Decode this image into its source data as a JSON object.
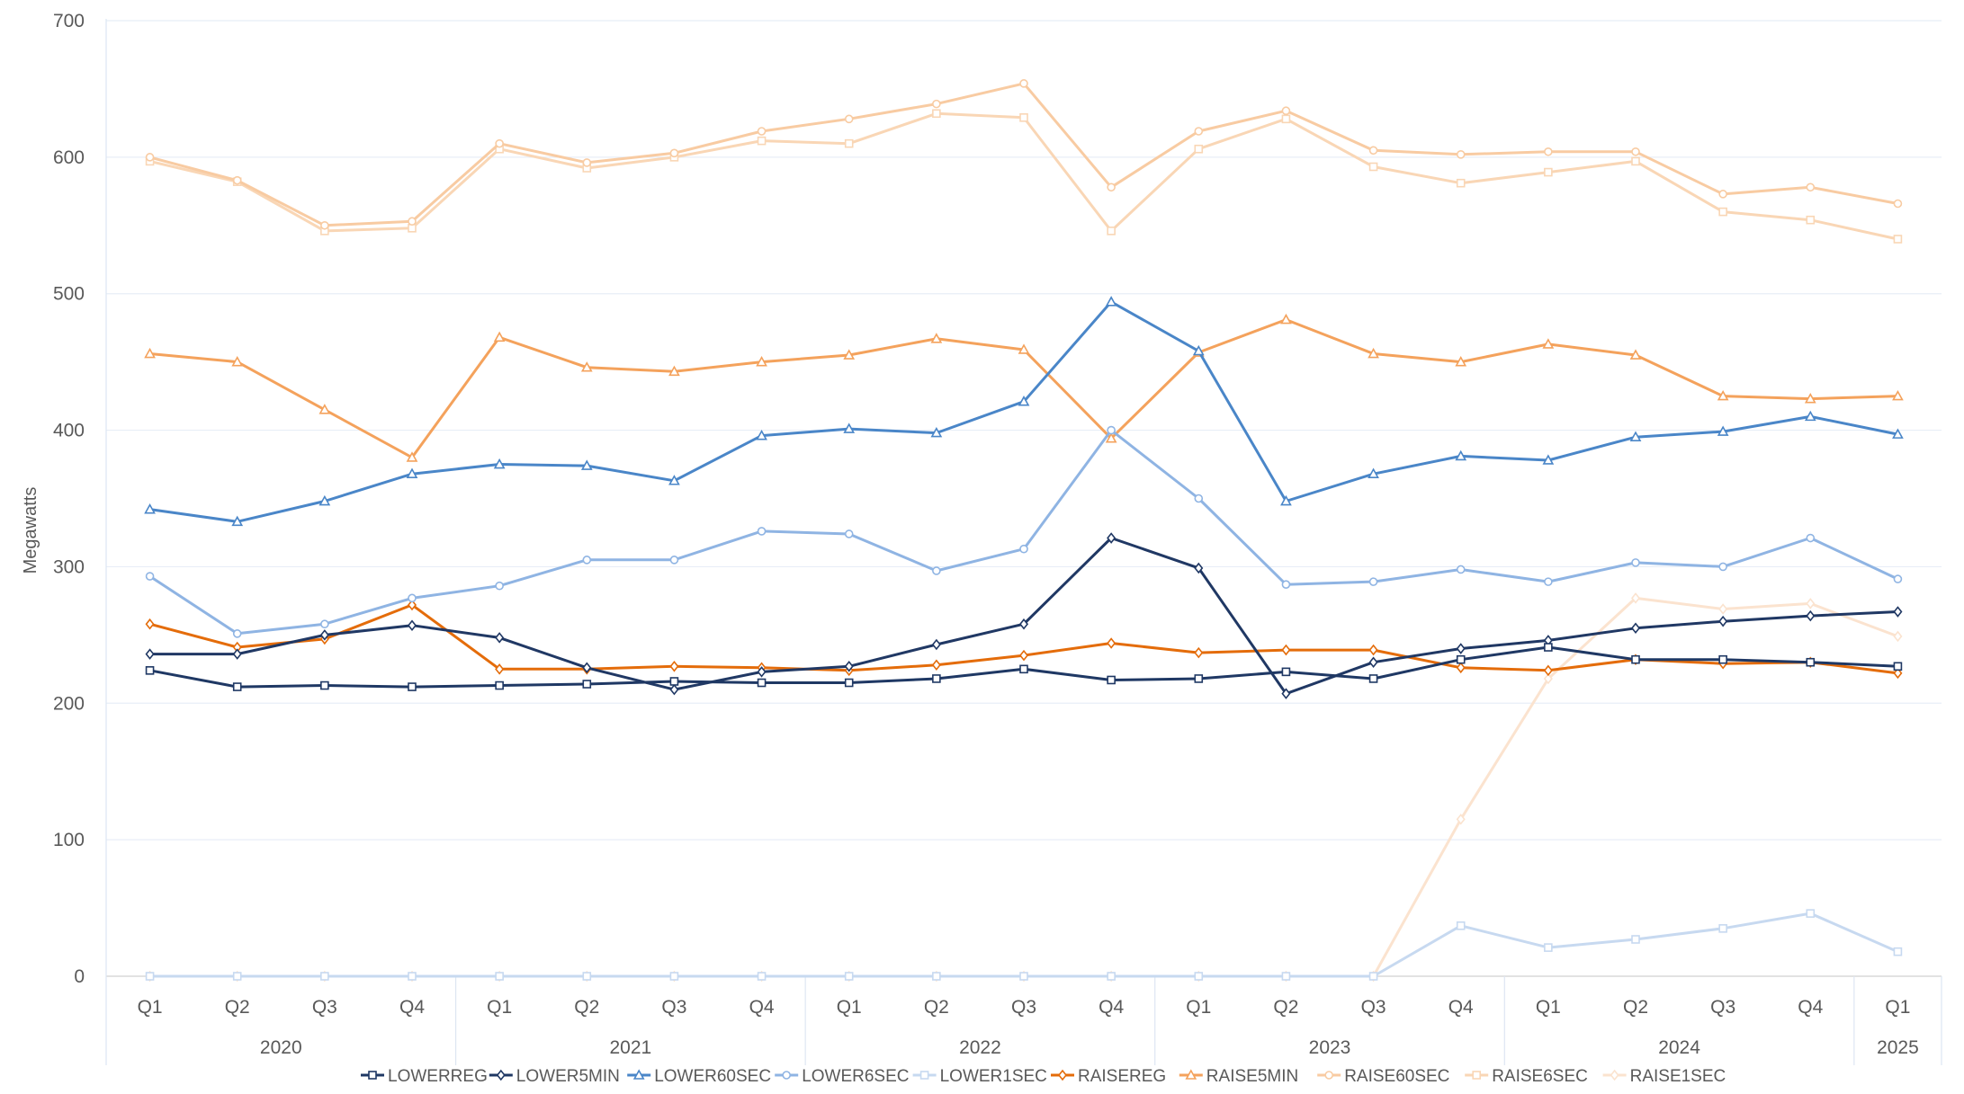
{
  "chart_data": {
    "type": "line",
    "title": "",
    "xlabel": "",
    "ylabel": "Megawatts",
    "ylim": [
      0,
      700
    ],
    "y_ticks": [
      "0",
      "100",
      "200",
      "300",
      "400",
      "500",
      "600",
      "700"
    ],
    "grid": true,
    "legend_position": "bottom",
    "categories": [
      "Q1",
      "Q2",
      "Q3",
      "Q4",
      "Q1",
      "Q2",
      "Q3",
      "Q4",
      "Q1",
      "Q2",
      "Q3",
      "Q4",
      "Q1",
      "Q2",
      "Q3",
      "Q4",
      "Q1",
      "Q2",
      "Q3",
      "Q4",
      "Q1"
    ],
    "years": [
      {
        "label": "2020",
        "quarters": 4
      },
      {
        "label": "2021",
        "quarters": 4
      },
      {
        "label": "2022",
        "quarters": 4
      },
      {
        "label": "2023",
        "quarters": 4
      },
      {
        "label": "2024",
        "quarters": 4
      },
      {
        "label": "2025",
        "quarters": 1
      }
    ],
    "series": [
      {
        "name": "LOWERREG",
        "color": "#1f3864",
        "marker": "square",
        "values": [
          224,
          212,
          213,
          212,
          213,
          214,
          216,
          215,
          215,
          218,
          225,
          217,
          218,
          223,
          218,
          232,
          241,
          232,
          232,
          230,
          227
        ]
      },
      {
        "name": "LOWER5MIN",
        "color": "#203864",
        "marker": "diamond",
        "values": [
          236,
          236,
          250,
          257,
          248,
          226,
          210,
          223,
          227,
          243,
          258,
          321,
          299,
          207,
          230,
          240,
          246,
          255,
          260,
          264,
          267
        ]
      },
      {
        "name": "LOWER60SEC",
        "color": "#4a86c8",
        "marker": "triangle",
        "values": [
          342,
          333,
          348,
          368,
          375,
          374,
          363,
          396,
          401,
          398,
          421,
          494,
          458,
          348,
          368,
          381,
          378,
          395,
          399,
          410,
          397
        ]
      },
      {
        "name": "LOWER6SEC",
        "color": "#8fb4e3",
        "marker": "circle",
        "values": [
          293,
          251,
          258,
          277,
          286,
          305,
          305,
          326,
          324,
          297,
          313,
          400,
          350,
          287,
          289,
          298,
          289,
          303,
          300,
          321,
          291
        ]
      },
      {
        "name": "LOWER1SEC",
        "color": "#c7d9f0",
        "marker": "square",
        "values": [
          0,
          0,
          0,
          0,
          0,
          0,
          0,
          0,
          0,
          0,
          0,
          0,
          0,
          0,
          0,
          37,
          21,
          27,
          35,
          46,
          18
        ]
      },
      {
        "name": "RAISEREG",
        "color": "#e46c0a",
        "marker": "diamond",
        "values": [
          258,
          241,
          247,
          272,
          225,
          225,
          227,
          226,
          224,
          228,
          235,
          244,
          237,
          239,
          239,
          226,
          224,
          232,
          229,
          230,
          222
        ]
      },
      {
        "name": "RAISE5MIN",
        "color": "#f4a25c",
        "marker": "triangle",
        "values": [
          456,
          450,
          415,
          380,
          468,
          446,
          443,
          450,
          455,
          467,
          459,
          394,
          457,
          481,
          456,
          450,
          463,
          455,
          425,
          423,
          425
        ]
      },
      {
        "name": "RAISE60SEC",
        "color": "#f8cba2",
        "marker": "circle",
        "values": [
          600,
          583,
          550,
          553,
          610,
          596,
          603,
          619,
          628,
          639,
          654,
          578,
          619,
          634,
          605,
          602,
          604,
          604,
          573,
          578,
          566
        ]
      },
      {
        "name": "RAISE6SEC",
        "color": "#f9d6b5",
        "marker": "square",
        "values": [
          597,
          582,
          546,
          548,
          606,
          592,
          600,
          612,
          610,
          632,
          629,
          546,
          606,
          628,
          593,
          581,
          589,
          597,
          560,
          554,
          540
        ]
      },
      {
        "name": "RAISE1SEC",
        "color": "#fbe3cf",
        "marker": "diamond",
        "values": [
          0,
          0,
          0,
          0,
          0,
          0,
          0,
          0,
          0,
          0,
          0,
          0,
          0,
          0,
          0,
          115,
          218,
          277,
          269,
          273,
          249
        ]
      }
    ]
  }
}
